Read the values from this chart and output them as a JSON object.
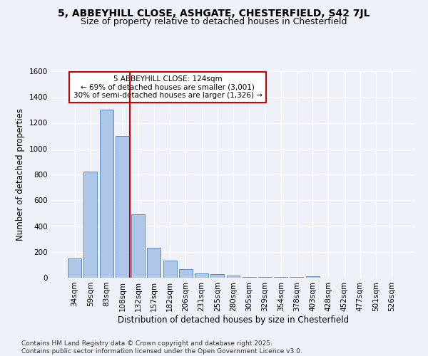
{
  "title": "5, ABBEYHILL CLOSE, ASHGATE, CHESTERFIELD, S42 7JL",
  "subtitle": "Size of property relative to detached houses in Chesterfield",
  "xlabel": "Distribution of detached houses by size in Chesterfield",
  "ylabel": "Number of detached properties",
  "categories": [
    "34sqm",
    "59sqm",
    "83sqm",
    "108sqm",
    "132sqm",
    "157sqm",
    "182sqm",
    "206sqm",
    "231sqm",
    "255sqm",
    "280sqm",
    "305sqm",
    "329sqm",
    "354sqm",
    "378sqm",
    "403sqm",
    "428sqm",
    "452sqm",
    "477sqm",
    "501sqm",
    "526sqm"
  ],
  "values": [
    150,
    820,
    1300,
    1100,
    490,
    230,
    130,
    65,
    35,
    25,
    15,
    5,
    5,
    5,
    5,
    10,
    2,
    2,
    2,
    2,
    2
  ],
  "bar_color": "#aec6e8",
  "bar_edge_color": "#5a8fc2",
  "background_color": "#eef2f8",
  "grid_color": "#ffffff",
  "annotation_text": "5 ABBEYHILL CLOSE: 124sqm\n← 69% of detached houses are smaller (3,001)\n30% of semi-detached houses are larger (1,326) →",
  "annotation_box_color": "#ffffff",
  "annotation_box_edge": "#cc0000",
  "vline_color": "#cc0000",
  "ylim": [
    0,
    1600
  ],
  "yticks": [
    0,
    200,
    400,
    600,
    800,
    1000,
    1200,
    1400,
    1600
  ],
  "footnote": "Contains HM Land Registry data © Crown copyright and database right 2025.\nContains public sector information licensed under the Open Government Licence v3.0.",
  "title_fontsize": 10,
  "subtitle_fontsize": 9,
  "xlabel_fontsize": 8.5,
  "ylabel_fontsize": 8.5,
  "tick_fontsize": 7.5,
  "annotation_fontsize": 7.5,
  "footnote_fontsize": 6.5
}
